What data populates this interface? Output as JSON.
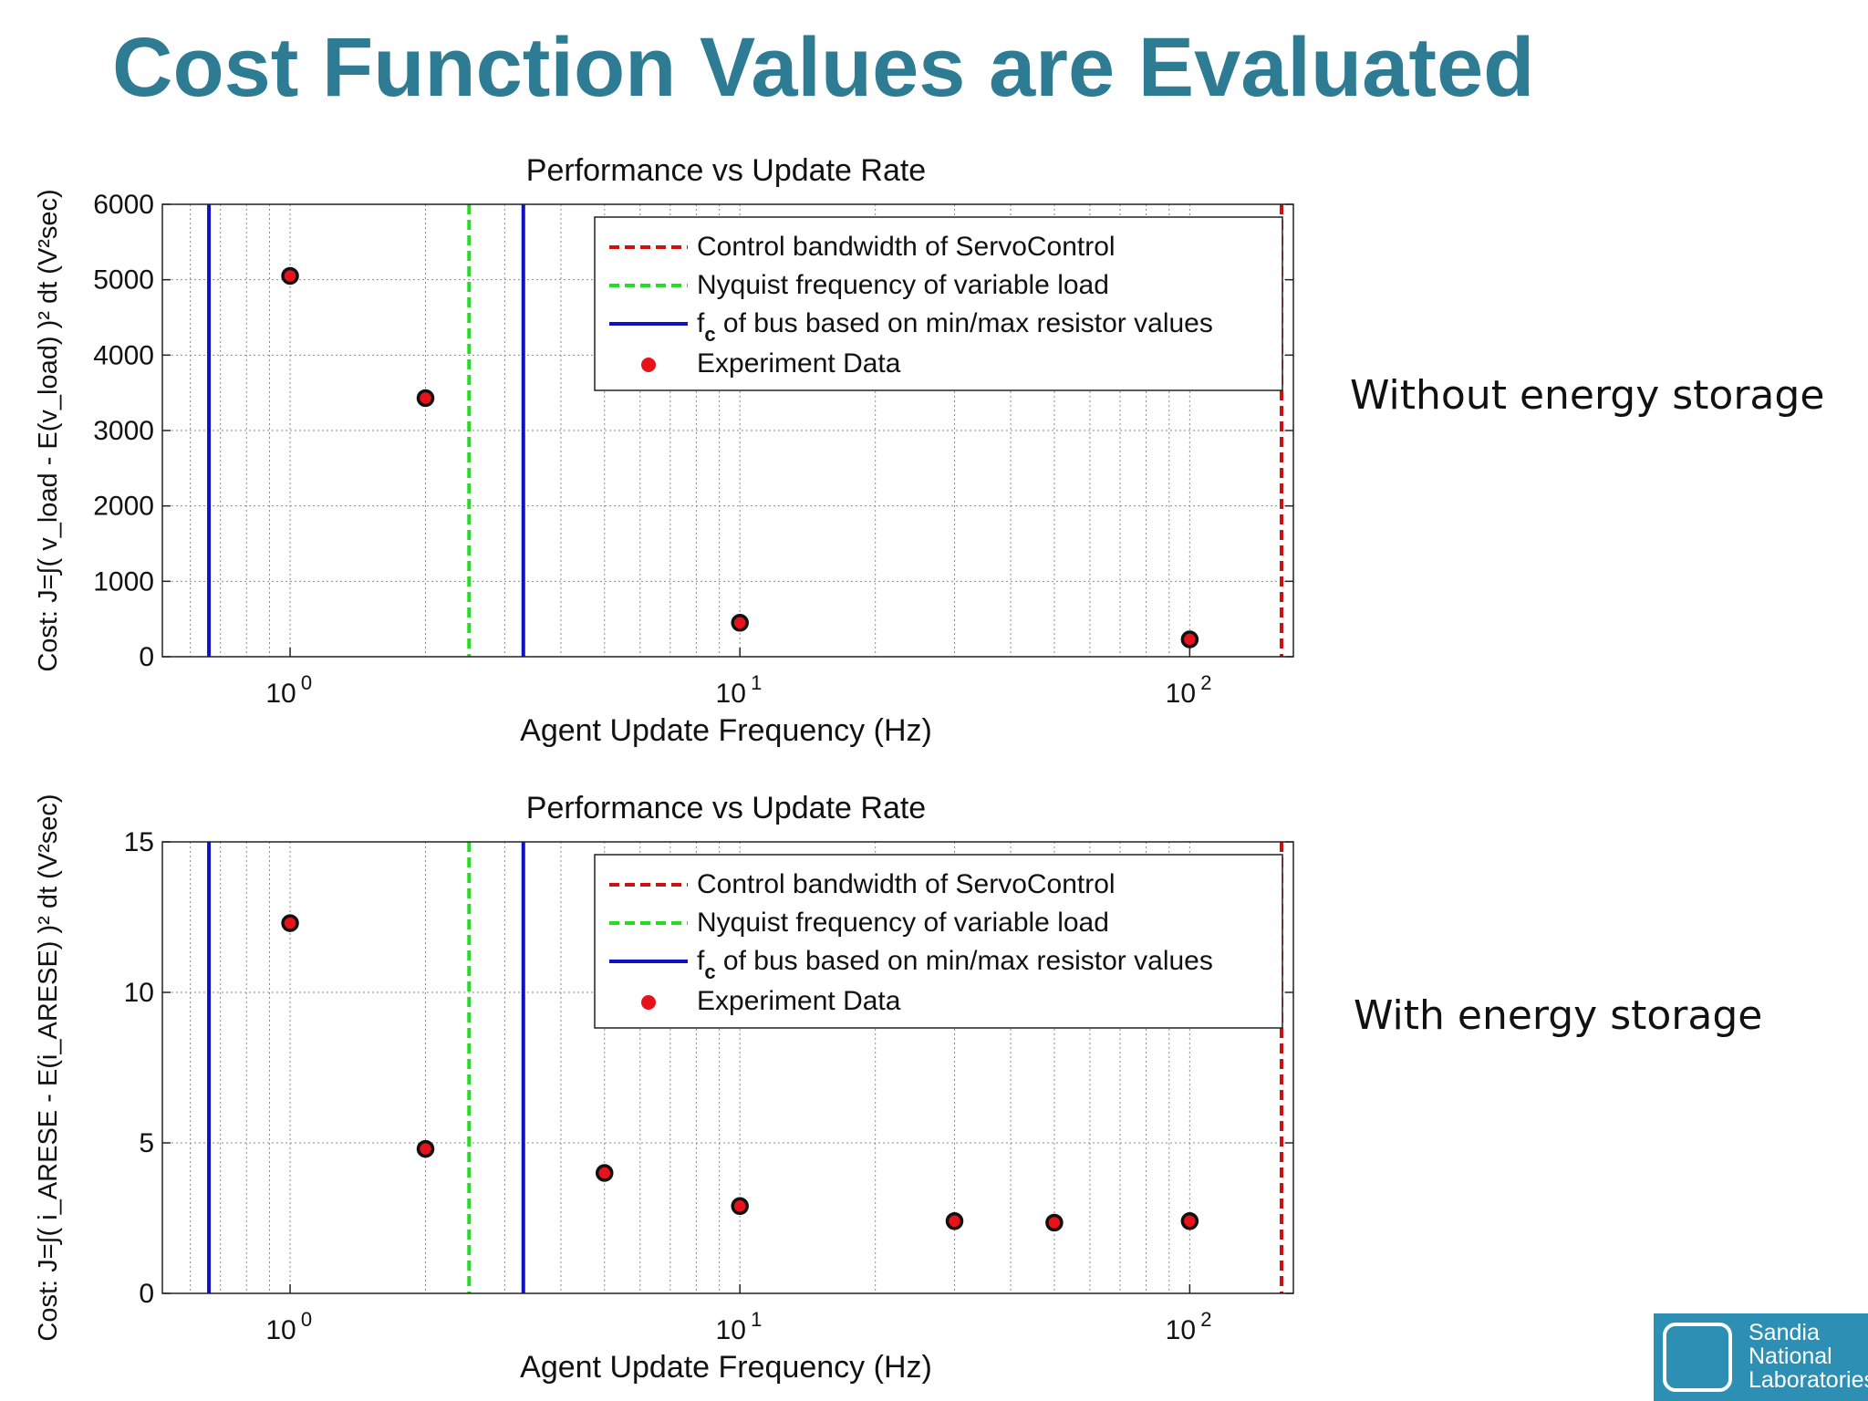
{
  "slide": {
    "title": "Cost Function Values are Evaluated"
  },
  "side_labels": [
    "Without energy storage",
    "With energy storage"
  ],
  "logo": {
    "lines": [
      "Sandia",
      "National",
      "Laboratories"
    ]
  },
  "chart_data": [
    {
      "type": "scatter",
      "title": "Performance vs Update Rate",
      "xlabel": "Agent Update Frequency (Hz)",
      "ylabel": "Cost: J=∫( v_load - E(v_load) )² dt  (V²sec)",
      "x_scale": "log",
      "xlim": [
        0.52,
        170
      ],
      "ylim": [
        0,
        6000
      ],
      "yticks": [
        0,
        1000,
        2000,
        3000,
        4000,
        5000,
        6000
      ],
      "xticks": [
        {
          "base": "10",
          "exp": "0"
        },
        {
          "base": "10",
          "exp": "1"
        },
        {
          "base": "10",
          "exp": "2"
        }
      ],
      "grid": true,
      "legend_position": "top-right",
      "legend": [
        {
          "label": "Control bandwidth of ServoControl",
          "style": "red-dashed"
        },
        {
          "label": "Nyquist frequency of variable load",
          "style": "green-dashed"
        },
        {
          "label_main": "f",
          "label_sub": "c",
          "label_rest": " of bus based on min/max resistor values",
          "style": "blue-solid"
        },
        {
          "label": "Experiment Data",
          "style": "red-dot"
        }
      ],
      "vlines": [
        {
          "x": 0.66,
          "color": "#1010c8",
          "dash": false
        },
        {
          "x": 3.3,
          "color": "#1010c8",
          "dash": false
        },
        {
          "x": 2.5,
          "color": "#22dd22",
          "dash": true
        },
        {
          "x": 160,
          "color": "#cc1111",
          "dash": true
        }
      ],
      "series": [
        {
          "x": [
            1,
            2,
            10,
            100
          ],
          "y": [
            5050,
            3430,
            450,
            230
          ]
        }
      ]
    },
    {
      "type": "scatter",
      "title": "Performance vs Update Rate",
      "xlabel": "Agent Update Frequency (Hz)",
      "ylabel": "Cost: J=∫( i_ARESE - E(i_ARESE) )² dt  (V²sec)",
      "x_scale": "log",
      "xlim": [
        0.52,
        170
      ],
      "ylim": [
        0,
        15
      ],
      "yticks": [
        0,
        5,
        10,
        15
      ],
      "xticks": [
        {
          "base": "10",
          "exp": "0"
        },
        {
          "base": "10",
          "exp": "1"
        },
        {
          "base": "10",
          "exp": "2"
        }
      ],
      "grid": true,
      "legend_position": "top-right",
      "legend": [
        {
          "label": "Control bandwidth of ServoControl",
          "style": "red-dashed"
        },
        {
          "label": "Nyquist frequency of variable load",
          "style": "green-dashed"
        },
        {
          "label_main": "f",
          "label_sub": "c",
          "label_rest": " of bus based on min/max resistor values",
          "style": "blue-solid"
        },
        {
          "label": "Experiment Data",
          "style": "red-dot"
        }
      ],
      "vlines": [
        {
          "x": 0.66,
          "color": "#1010c8",
          "dash": false
        },
        {
          "x": 3.3,
          "color": "#1010c8",
          "dash": false
        },
        {
          "x": 2.5,
          "color": "#22dd22",
          "dash": true
        },
        {
          "x": 160,
          "color": "#cc1111",
          "dash": true
        }
      ],
      "series": [
        {
          "x": [
            1,
            2,
            5,
            10,
            30,
            50,
            100
          ],
          "y": [
            12.3,
            4.8,
            4.0,
            2.9,
            2.4,
            2.35,
            2.4
          ]
        }
      ]
    }
  ]
}
